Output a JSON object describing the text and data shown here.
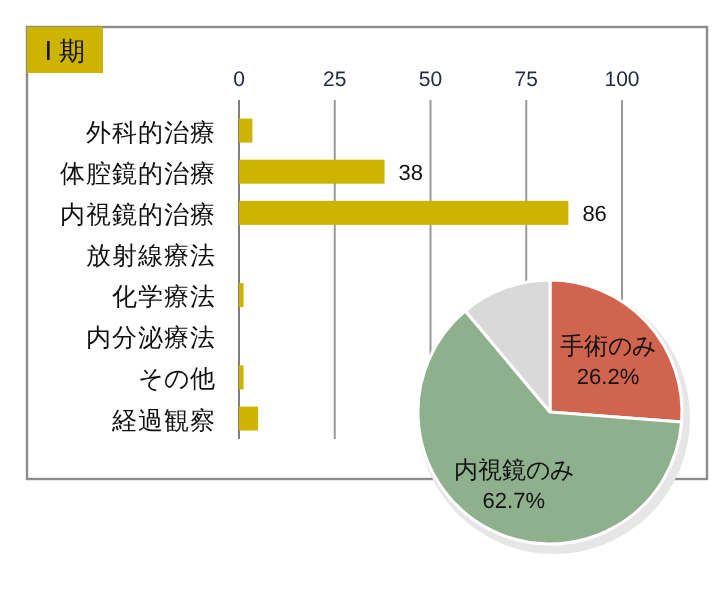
{
  "chart_data": [
    {
      "type": "bar",
      "title": "Ⅰ 期",
      "orientation": "horizontal",
      "categories": [
        "外科的治療",
        "体腔鏡的治療",
        "内視鏡的治療",
        "放射線療法",
        "化学療法",
        "内分泌療法",
        "その他",
        "経過観察"
      ],
      "values": [
        3.5,
        38,
        86,
        0,
        1.2,
        0,
        1.2,
        5
      ],
      "value_labels": [
        null,
        "38",
        "86",
        null,
        null,
        null,
        null,
        null
      ],
      "color": "#ccb400",
      "xlim": [
        0,
        100
      ],
      "xticks": [
        0,
        25,
        50,
        75,
        100
      ],
      "grid": "x"
    },
    {
      "type": "pie",
      "categories": [
        "手術のみ",
        "内視鏡のみ",
        null
      ],
      "values": [
        26.2,
        62.7,
        11.1
      ],
      "colors": [
        "#d0644e",
        "#8fb08c",
        "#d9d9d9"
      ],
      "value_labels": [
        "26.2%",
        "62.7%",
        null
      ]
    }
  ]
}
